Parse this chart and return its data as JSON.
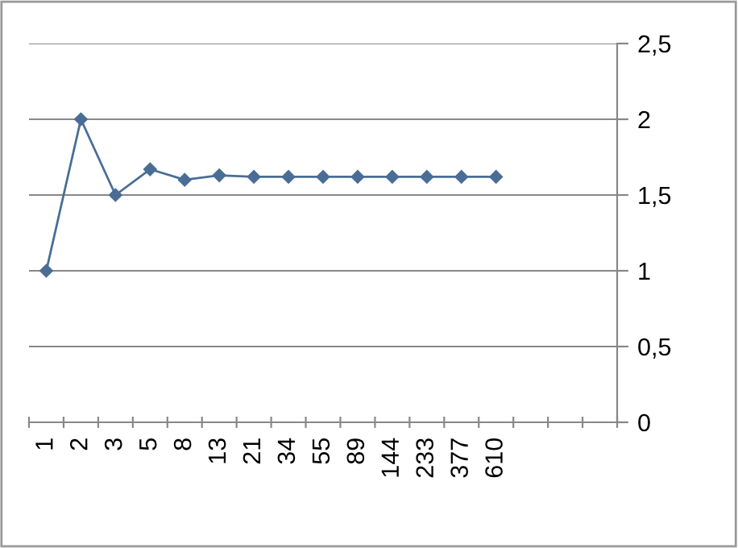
{
  "chart_data": {
    "type": "line",
    "categories": [
      "1",
      "2",
      "3",
      "5",
      "8",
      "13",
      "21",
      "34",
      "55",
      "89",
      "144",
      "233",
      "377",
      "610",
      null,
      null,
      null
    ],
    "series": [
      {
        "color": "#4a6d96",
        "values": [
          1,
          2,
          1.5,
          1.67,
          1.6,
          1.63,
          1.62,
          1.62,
          1.62,
          1.62,
          1.62,
          1.62,
          1.62,
          1.62,
          null,
          null,
          null
        ]
      }
    ],
    "ylim": [
      0,
      2.5
    ],
    "yticks": [
      {
        "value": 0,
        "label": "0"
      },
      {
        "value": 0.5,
        "label": "0,5"
      },
      {
        "value": 1,
        "label": "1"
      },
      {
        "value": 1.5,
        "label": "1,5"
      },
      {
        "value": 2,
        "label": "2"
      },
      {
        "value": 2.5,
        "label": "2,5"
      }
    ],
    "grid": "y",
    "marker": "diamond",
    "line_style": "solid"
  }
}
